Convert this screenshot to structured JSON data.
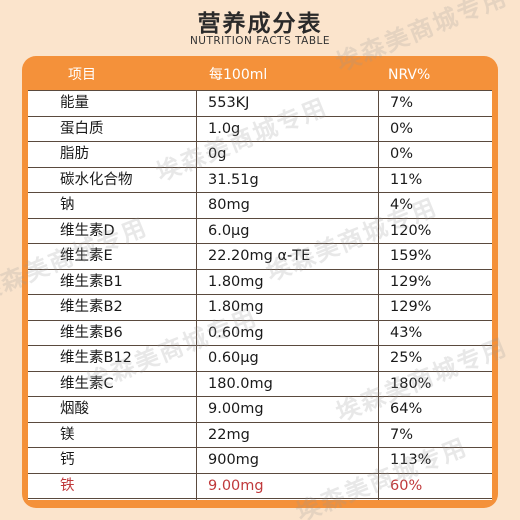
{
  "header": {
    "title": "营养成分表",
    "subtitle": "NUTRITION FACTS TABLE"
  },
  "columns": {
    "item": "项目",
    "per": "每100ml",
    "nrv": "NRV%"
  },
  "rows": [
    {
      "item": "能量",
      "per": "553KJ",
      "nrv": "7%"
    },
    {
      "item": "蛋白质",
      "per": "1.0g",
      "nrv": "0%"
    },
    {
      "item": "脂肪",
      "per": "0g",
      "nrv": "0%"
    },
    {
      "item": "碳水化合物",
      "per": "31.51g",
      "nrv": "11%"
    },
    {
      "item": "钠",
      "per": "80mg",
      "nrv": "4%"
    },
    {
      "item": "维生素D",
      "per": "6.0µg",
      "nrv": "120%"
    },
    {
      "item": "维生素E",
      "per": "22.20mg α-TE",
      "nrv": "159%"
    },
    {
      "item": "维生素B1",
      "per": "1.80mg",
      "nrv": "129%"
    },
    {
      "item": "维生素B2",
      "per": "1.80mg",
      "nrv": "129%"
    },
    {
      "item": "维生素B6",
      "per": "0.60mg",
      "nrv": "43%"
    },
    {
      "item": "维生素B12",
      "per": "0.60µg",
      "nrv": "25%"
    },
    {
      "item": "维生素C",
      "per": "180.0mg",
      "nrv": "180%"
    },
    {
      "item": "烟酸",
      "per": "9.00mg",
      "nrv": "64%"
    },
    {
      "item": "镁",
      "per": "22mg",
      "nrv": "7%"
    },
    {
      "item": "钙",
      "per": "900mg",
      "nrv": "113%"
    },
    {
      "item": "铁",
      "per": "9.00mg",
      "nrv": "60%"
    }
  ],
  "watermark": "埃森美商城专用",
  "colors": {
    "header_band": "#f4913a",
    "background": "#fbe4cc",
    "highlight_row": "#c0393b"
  }
}
